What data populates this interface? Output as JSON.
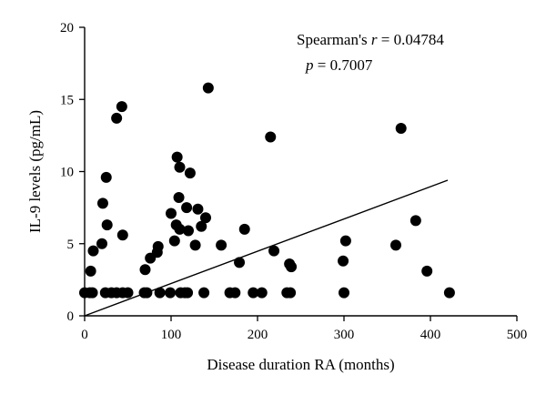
{
  "chart_data": {
    "type": "scatter",
    "xlabel": "Disease duration RA (months)",
    "ylabel": "IL-9 levels (pg/mL)",
    "xlim": [
      0,
      500
    ],
    "ylim": [
      0,
      20
    ],
    "xticks": [
      0,
      100,
      200,
      300,
      400,
      500
    ],
    "yticks": [
      0,
      5,
      10,
      15,
      20
    ],
    "grid": false,
    "annotation": {
      "line1_prefix": "Spearman's ",
      "line1_var": "r",
      "line1_value": " = 0.04784",
      "line2_var": "p",
      "line2_value": " = 0.7007"
    },
    "trendline": {
      "x": [
        0,
        420
      ],
      "y": [
        0,
        9.4
      ]
    },
    "points": [
      {
        "x": 0,
        "y": 1.6
      },
      {
        "x": 6,
        "y": 1.6
      },
      {
        "x": 9,
        "y": 1.6
      },
      {
        "x": 7,
        "y": 3.1
      },
      {
        "x": 10,
        "y": 4.5
      },
      {
        "x": 20,
        "y": 5.0
      },
      {
        "x": 21,
        "y": 7.8
      },
      {
        "x": 25,
        "y": 9.6
      },
      {
        "x": 26,
        "y": 6.3
      },
      {
        "x": 24,
        "y": 1.6
      },
      {
        "x": 31,
        "y": 1.6
      },
      {
        "x": 37,
        "y": 1.6
      },
      {
        "x": 37,
        "y": 13.7
      },
      {
        "x": 43,
        "y": 14.5
      },
      {
        "x": 44,
        "y": 5.6
      },
      {
        "x": 44,
        "y": 1.6
      },
      {
        "x": 50,
        "y": 1.6
      },
      {
        "x": 69,
        "y": 1.6
      },
      {
        "x": 72,
        "y": 1.6
      },
      {
        "x": 70,
        "y": 3.2
      },
      {
        "x": 76,
        "y": 4.0
      },
      {
        "x": 84,
        "y": 4.4
      },
      {
        "x": 85,
        "y": 4.8
      },
      {
        "x": 87,
        "y": 1.6
      },
      {
        "x": 99,
        "y": 1.6
      },
      {
        "x": 100,
        "y": 7.1
      },
      {
        "x": 104,
        "y": 5.2
      },
      {
        "x": 106,
        "y": 6.3
      },
      {
        "x": 107,
        "y": 11.0
      },
      {
        "x": 109,
        "y": 8.2
      },
      {
        "x": 110,
        "y": 10.3
      },
      {
        "x": 110,
        "y": 6.0
      },
      {
        "x": 111,
        "y": 1.6
      },
      {
        "x": 116,
        "y": 1.6
      },
      {
        "x": 119,
        "y": 1.6
      },
      {
        "x": 118,
        "y": 7.5
      },
      {
        "x": 120,
        "y": 5.9
      },
      {
        "x": 122,
        "y": 9.9
      },
      {
        "x": 128,
        "y": 4.9
      },
      {
        "x": 131,
        "y": 7.4
      },
      {
        "x": 135,
        "y": 6.2
      },
      {
        "x": 138,
        "y": 1.6
      },
      {
        "x": 140,
        "y": 6.8
      },
      {
        "x": 143,
        "y": 15.8
      },
      {
        "x": 158,
        "y": 4.9
      },
      {
        "x": 168,
        "y": 1.6
      },
      {
        "x": 174,
        "y": 1.6
      },
      {
        "x": 179,
        "y": 3.7
      },
      {
        "x": 185,
        "y": 6.0
      },
      {
        "x": 195,
        "y": 1.6
      },
      {
        "x": 205,
        "y": 1.6
      },
      {
        "x": 215,
        "y": 12.4
      },
      {
        "x": 219,
        "y": 4.5
      },
      {
        "x": 234,
        "y": 1.6
      },
      {
        "x": 238,
        "y": 1.6
      },
      {
        "x": 237,
        "y": 3.6
      },
      {
        "x": 239,
        "y": 3.4
      },
      {
        "x": 300,
        "y": 1.6
      },
      {
        "x": 299,
        "y": 3.8
      },
      {
        "x": 302,
        "y": 5.2
      },
      {
        "x": 360,
        "y": 4.9
      },
      {
        "x": 366,
        "y": 13.0
      },
      {
        "x": 383,
        "y": 6.6
      },
      {
        "x": 396,
        "y": 3.1
      },
      {
        "x": 422,
        "y": 1.6
      }
    ]
  }
}
